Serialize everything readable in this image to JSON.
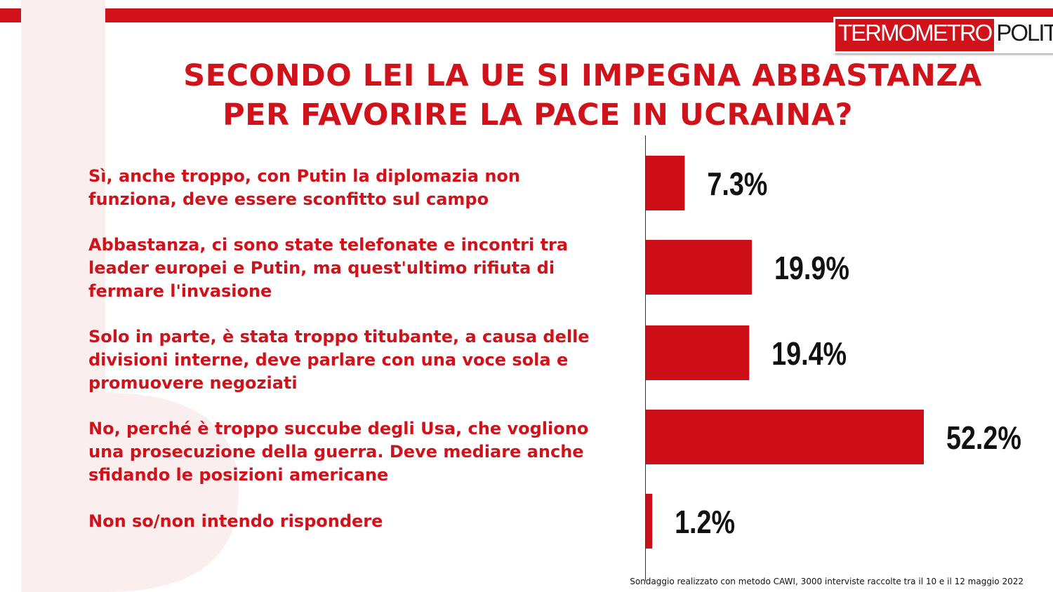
{
  "logo": {
    "left_text": "TERMOMETRO",
    "right_text": "POLITICO"
  },
  "colors": {
    "accent": "#d0121b",
    "bar": "#cc0e17",
    "text": "#111111"
  },
  "chart_data": {
    "type": "bar",
    "orientation": "horizontal",
    "title_lines": [
      "SECONDO LEI LA UE SI IMPEGNA ABBASTANZA",
      "PER FAVORIRE LA PACE IN UCRAINA?"
    ],
    "categories": [
      [
        "Sì, anche troppo, con Putin la diplomazia non",
        "funziona, deve essere sconfitto sul campo"
      ],
      [
        "Abbastanza, ci sono state telefonate e incontri tra",
        "leader europei e Putin, ma quest'ultimo rifiuta di",
        "fermare l'invasione"
      ],
      [
        "Solo in parte, è stata troppo titubante, a causa delle",
        "divisioni interne, deve parlare con una voce sola e",
        "promuovere negoziati"
      ],
      [
        "No, perché è troppo succube degli Usa, che vogliono",
        "una prosecuzione della guerra. Deve mediare anche",
        "sfidando le posizioni americane"
      ],
      [
        "Non so/non intendo rispondere"
      ]
    ],
    "values": [
      7.3,
      19.9,
      19.4,
      52.2,
      1.2
    ],
    "value_labels": [
      "7.3%",
      "19.9%",
      "19.4%",
      "52.2%",
      "1.2%"
    ],
    "unit": "%",
    "grid": false,
    "legend": "none"
  },
  "footer": {
    "note": "Sondaggio realizzato con metodo CAWI, 3000 interviste raccolte tra il 10 e il 12 maggio 2022"
  }
}
